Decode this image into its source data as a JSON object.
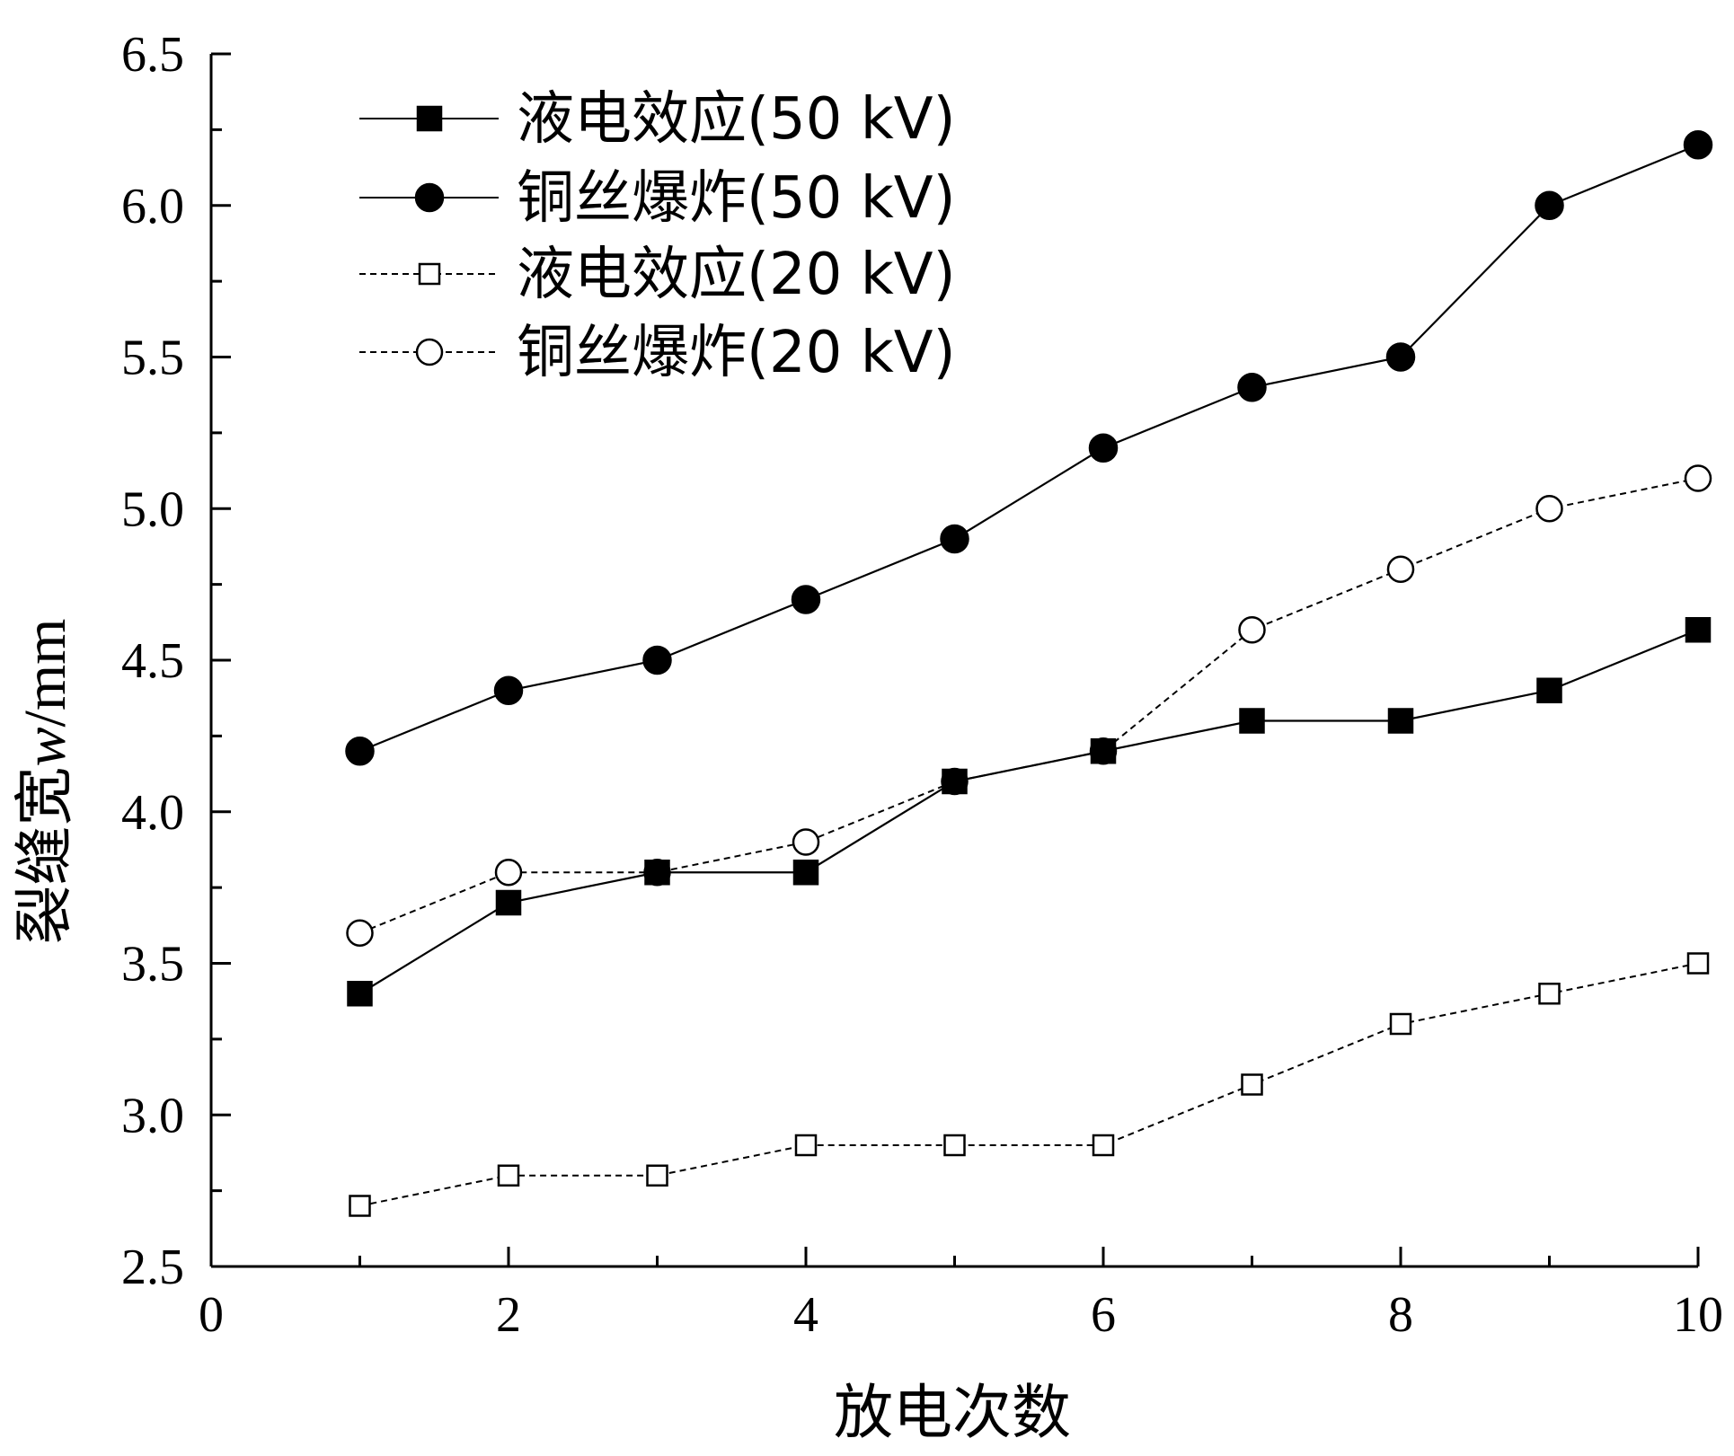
{
  "chart_data": {
    "type": "line",
    "xlabel": "放电次数",
    "ylabel_main": "裂缝宽",
    "ylabel_italic": "w",
    "ylabel_unit": "/mm",
    "xlim": [
      0,
      10
    ],
    "ylim": [
      2.5,
      6.5
    ],
    "x_ticks": [
      "0",
      "2",
      "4",
      "6",
      "8",
      "10"
    ],
    "y_ticks": [
      "2.5",
      "3.0",
      "3.5",
      "4.0",
      "4.5",
      "5.0",
      "5.5",
      "6.0",
      "6.5"
    ],
    "grid": false,
    "legend_position": "top-left",
    "x": [
      1,
      2,
      3,
      4,
      5,
      6,
      7,
      8,
      9,
      10
    ],
    "series": [
      {
        "name": "液电效应(50 kV)",
        "marker": "square",
        "filled": true,
        "line": "solid",
        "values": [
          3.4,
          3.7,
          3.8,
          3.8,
          4.1,
          4.2,
          4.3,
          4.3,
          4.4,
          4.6
        ]
      },
      {
        "name": "铜丝爆炸(50 kV)",
        "marker": "circle",
        "filled": true,
        "line": "solid",
        "values": [
          4.2,
          4.4,
          4.5,
          4.7,
          4.9,
          5.2,
          5.4,
          5.5,
          6.0,
          6.2
        ]
      },
      {
        "name": "液电效应(20 kV)",
        "marker": "square",
        "filled": false,
        "line": "dashed",
        "values": [
          2.7,
          2.8,
          2.8,
          2.9,
          2.9,
          2.9,
          3.1,
          3.3,
          3.4,
          3.5
        ]
      },
      {
        "name": "铜丝爆炸(20 kV)",
        "marker": "circle",
        "filled": false,
        "line": "dashed",
        "values": [
          3.6,
          3.8,
          3.8,
          3.9,
          4.1,
          4.2,
          4.6,
          4.8,
          5.0,
          5.1
        ]
      }
    ],
    "colors": {
      "ink": "#000000",
      "background": "#ffffff"
    }
  }
}
